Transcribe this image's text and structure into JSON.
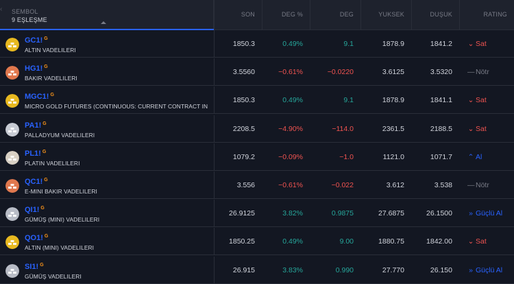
{
  "header": {
    "symbol_label": "SEMBOL",
    "match_count": "9 EŞLEŞME",
    "columns": [
      "SON",
      "DEG %",
      "DEG",
      "YUKSEK",
      "DUŞUK",
      "RATING"
    ]
  },
  "colors": {
    "background": "#131722",
    "header_bg": "#1e222d",
    "ticker": "#2962ff",
    "positive": "#26a69a",
    "negative": "#ef5350",
    "neutral": "#787b86",
    "flag": "#f7931a"
  },
  "rows": [
    {
      "ticker": "GC1!",
      "flag": "G",
      "description": "ALTIN VADELILERI",
      "icon": "gold-bar-icon",
      "icon_color": "#e8b920",
      "son": "1850.3",
      "deg_pct": "0.49%",
      "deg": "9.1",
      "yuksek": "1878.9",
      "dusuk": "1841.2",
      "rating": "Sat",
      "rating_icon": "chevron-down-icon",
      "rating_type": "sell",
      "trend": "up"
    },
    {
      "ticker": "HG1!",
      "flag": "G",
      "description": "BAKIR VADELILERI",
      "icon": "copper-bar-icon",
      "icon_color": "#e0784e",
      "son": "3.5560",
      "deg_pct": "−0.61%",
      "deg": "−0.0220",
      "yuksek": "3.6125",
      "dusuk": "3.5320",
      "rating": "Nötr",
      "rating_icon": "dash-icon",
      "rating_type": "neutral",
      "trend": "down"
    },
    {
      "ticker": "MGC1!",
      "flag": "G",
      "description": "MICRO GOLD FUTURES (CONTINUOUS: CURRENT CONTRACT IN",
      "icon": "gold-bar-icon",
      "icon_color": "#e8b920",
      "son": "1850.3",
      "deg_pct": "0.49%",
      "deg": "9.1",
      "yuksek": "1878.9",
      "dusuk": "1841.1",
      "rating": "Sat",
      "rating_icon": "chevron-down-icon",
      "rating_type": "sell",
      "trend": "up"
    },
    {
      "ticker": "PA1!",
      "flag": "G",
      "description": "PALLADYUM VADELILERI",
      "icon": "palladium-bar-icon",
      "icon_color": "#c8ccd4",
      "son": "2208.5",
      "deg_pct": "−4.90%",
      "deg": "−114.0",
      "yuksek": "2361.5",
      "dusuk": "2188.5",
      "rating": "Sat",
      "rating_icon": "chevron-down-icon",
      "rating_type": "sell",
      "trend": "down"
    },
    {
      "ticker": "PL1!",
      "flag": "G",
      "description": "PLATIN VADELILERI",
      "icon": "platinum-bar-icon",
      "icon_color": "#d8d0c4",
      "son": "1079.2",
      "deg_pct": "−0.09%",
      "deg": "−1.0",
      "yuksek": "1121.0",
      "dusuk": "1071.7",
      "rating": "Al",
      "rating_icon": "chevron-up-icon",
      "rating_type": "buy",
      "trend": "down"
    },
    {
      "ticker": "QC1!",
      "flag": "G",
      "description": "E-MINI BAKIR VADELILERI",
      "icon": "copper-bar-icon",
      "icon_color": "#e0784e",
      "son": "3.556",
      "deg_pct": "−0.61%",
      "deg": "−0.022",
      "yuksek": "3.612",
      "dusuk": "3.538",
      "rating": "Nötr",
      "rating_icon": "dash-icon",
      "rating_type": "neutral",
      "trend": "down"
    },
    {
      "ticker": "QI1!",
      "flag": "G",
      "description": "GÜMÜŞ (MINI) VADELILERI",
      "icon": "silver-bar-icon",
      "icon_color": "#b8bcc6",
      "son": "26.9125",
      "deg_pct": "3.82%",
      "deg": "0.9875",
      "yuksek": "27.6875",
      "dusuk": "26.1500",
      "rating": "Güçlü Al",
      "rating_icon": "double-chevron-up-icon",
      "rating_type": "strongbuy",
      "trend": "up"
    },
    {
      "ticker": "QO1!",
      "flag": "G",
      "description": "ALTIN (MINI) VADELILERI",
      "icon": "gold-bar-icon",
      "icon_color": "#e8b920",
      "son": "1850.25",
      "deg_pct": "0.49%",
      "deg": "9.00",
      "yuksek": "1880.75",
      "dusuk": "1842.00",
      "rating": "Sat",
      "rating_icon": "chevron-down-icon",
      "rating_type": "sell",
      "trend": "up"
    },
    {
      "ticker": "SI1!",
      "flag": "G",
      "description": "GÜMÜŞ VADELILERI",
      "icon": "silver-bar-icon",
      "icon_color": "#b8bcc6",
      "son": "26.915",
      "deg_pct": "3.83%",
      "deg": "0.990",
      "yuksek": "27.770",
      "dusuk": "26.150",
      "rating": "Güçlü Al",
      "rating_icon": "double-chevron-up-icon",
      "rating_type": "strongbuy",
      "trend": "up"
    }
  ]
}
